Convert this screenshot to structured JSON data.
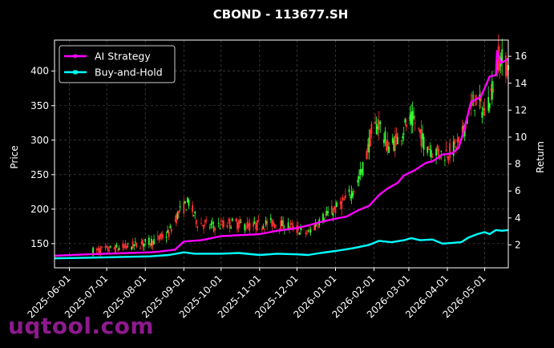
{
  "chart_data": {
    "type": "line",
    "title": "CBOND - 113677.SH",
    "ylabel_left": "Price",
    "ylabel_right": "Return",
    "ylim_left": [
      115,
      445
    ],
    "ylim_right": [
      0.3,
      17.2
    ],
    "yticks_left": [
      150,
      200,
      250,
      300,
      350,
      400
    ],
    "yticks_right": [
      2,
      4,
      6,
      8,
      10,
      12,
      14,
      16
    ],
    "xlim": [
      "2025-05-20",
      "2026-05-20"
    ],
    "x_tick_labels": [
      "2025-06-01",
      "2025-07-01",
      "2025-08-01",
      "2025-09-01",
      "2025-10-01",
      "2025-11-01",
      "2025-12-01",
      "2026-01-01",
      "2026-02-01",
      "2026-03-01",
      "2026-04-01",
      "2026-05-01"
    ],
    "grid": true,
    "legend_position": "top-left",
    "series": [
      {
        "name": "AI Strategy",
        "color": "#ff00ff",
        "axis": "right",
        "points": [
          [
            "2025-05-20",
            1.2
          ],
          [
            "2025-06-15",
            1.3
          ],
          [
            "2025-07-10",
            1.38
          ],
          [
            "2025-08-05",
            1.45
          ],
          [
            "2025-08-12",
            1.5
          ],
          [
            "2025-08-25",
            1.65
          ],
          [
            "2025-09-01",
            2.25
          ],
          [
            "2025-09-15",
            2.35
          ],
          [
            "2025-10-01",
            2.65
          ],
          [
            "2025-10-15",
            2.72
          ],
          [
            "2025-11-01",
            2.8
          ],
          [
            "2025-11-15",
            3.05
          ],
          [
            "2025-12-01",
            3.25
          ],
          [
            "2025-12-10",
            3.45
          ],
          [
            "2025-12-20",
            3.7
          ],
          [
            "2026-01-01",
            3.95
          ],
          [
            "2026-01-10",
            4.1
          ],
          [
            "2026-01-20",
            4.6
          ],
          [
            "2026-01-28",
            4.9
          ],
          [
            "2026-02-05",
            5.7
          ],
          [
            "2026-02-12",
            6.2
          ],
          [
            "2026-02-20",
            6.6
          ],
          [
            "2026-02-25",
            7.15
          ],
          [
            "2026-03-05",
            7.5
          ],
          [
            "2026-03-15",
            8.1
          ],
          [
            "2026-03-20",
            8.2
          ],
          [
            "2026-03-28",
            8.7
          ],
          [
            "2026-04-05",
            8.8
          ],
          [
            "2026-04-10",
            9.2
          ],
          [
            "2026-04-14",
            10.4
          ],
          [
            "2026-04-20",
            12.6
          ],
          [
            "2026-04-28",
            13.0
          ],
          [
            "2026-05-05",
            14.5
          ],
          [
            "2026-05-10",
            14.6
          ],
          [
            "2026-05-11",
            16.4
          ],
          [
            "2026-05-14",
            15.5
          ],
          [
            "2026-05-20",
            15.8
          ]
        ]
      },
      {
        "name": "Buy-and-Hold",
        "color": "#00ffff",
        "axis": "right",
        "points": [
          [
            "2025-05-20",
            1.0
          ],
          [
            "2025-06-15",
            1.05
          ],
          [
            "2025-07-10",
            1.1
          ],
          [
            "2025-08-05",
            1.15
          ],
          [
            "2025-08-20",
            1.25
          ],
          [
            "2025-09-01",
            1.45
          ],
          [
            "2025-09-10",
            1.35
          ],
          [
            "2025-10-01",
            1.35
          ],
          [
            "2025-10-15",
            1.4
          ],
          [
            "2025-11-01",
            1.25
          ],
          [
            "2025-11-15",
            1.35
          ],
          [
            "2025-12-01",
            1.3
          ],
          [
            "2025-12-10",
            1.25
          ],
          [
            "2025-12-20",
            1.4
          ],
          [
            "2026-01-01",
            1.55
          ],
          [
            "2026-01-15",
            1.75
          ],
          [
            "2026-01-28",
            2.0
          ],
          [
            "2026-02-05",
            2.3
          ],
          [
            "2026-02-15",
            2.2
          ],
          [
            "2026-02-25",
            2.35
          ],
          [
            "2026-03-03",
            2.5
          ],
          [
            "2026-03-10",
            2.35
          ],
          [
            "2026-03-20",
            2.4
          ],
          [
            "2026-03-28",
            2.1
          ],
          [
            "2026-04-05",
            2.15
          ],
          [
            "2026-04-12",
            2.2
          ],
          [
            "2026-04-18",
            2.55
          ],
          [
            "2026-04-25",
            2.8
          ],
          [
            "2026-05-01",
            2.95
          ],
          [
            "2026-05-05",
            2.8
          ],
          [
            "2026-05-10",
            3.1
          ],
          [
            "2026-05-15",
            3.05
          ],
          [
            "2026-05-20",
            3.1
          ]
        ]
      }
    ],
    "candle_anchors": [
      [
        "2025-05-20",
        135
      ],
      [
        "2025-06-15",
        138
      ],
      [
        "2025-07-10",
        143
      ],
      [
        "2025-07-25",
        148
      ],
      [
        "2025-08-10",
        155
      ],
      [
        "2025-08-20",
        165
      ],
      [
        "2025-08-28",
        195
      ],
      [
        "2025-09-05",
        210
      ],
      [
        "2025-09-12",
        180
      ],
      [
        "2025-09-25",
        175
      ],
      [
        "2025-10-10",
        180
      ],
      [
        "2025-10-25",
        175
      ],
      [
        "2025-11-10",
        180
      ],
      [
        "2025-11-25",
        175
      ],
      [
        "2025-12-10",
        165
      ],
      [
        "2025-12-20",
        185
      ],
      [
        "2026-01-01",
        200
      ],
      [
        "2026-01-10",
        215
      ],
      [
        "2026-01-18",
        235
      ],
      [
        "2026-01-24",
        265
      ],
      [
        "2026-01-30",
        310
      ],
      [
        "2026-02-05",
        325
      ],
      [
        "2026-02-12",
        290
      ],
      [
        "2026-02-20",
        300
      ],
      [
        "2026-02-26",
        320
      ],
      [
        "2026-03-05",
        330
      ],
      [
        "2026-03-12",
        300
      ],
      [
        "2026-03-20",
        285
      ],
      [
        "2026-03-28",
        280
      ],
      [
        "2026-04-05",
        285
      ],
      [
        "2026-04-12",
        300
      ],
      [
        "2026-04-18",
        340
      ],
      [
        "2026-04-24",
        360
      ],
      [
        "2026-05-01",
        340
      ],
      [
        "2026-05-08",
        380
      ],
      [
        "2026-05-12",
        420
      ],
      [
        "2026-05-20",
        405
      ]
    ],
    "candle_up_color": "#33ff33",
    "candle_down_color": "#ff3333"
  },
  "watermark": "uqtool.com"
}
